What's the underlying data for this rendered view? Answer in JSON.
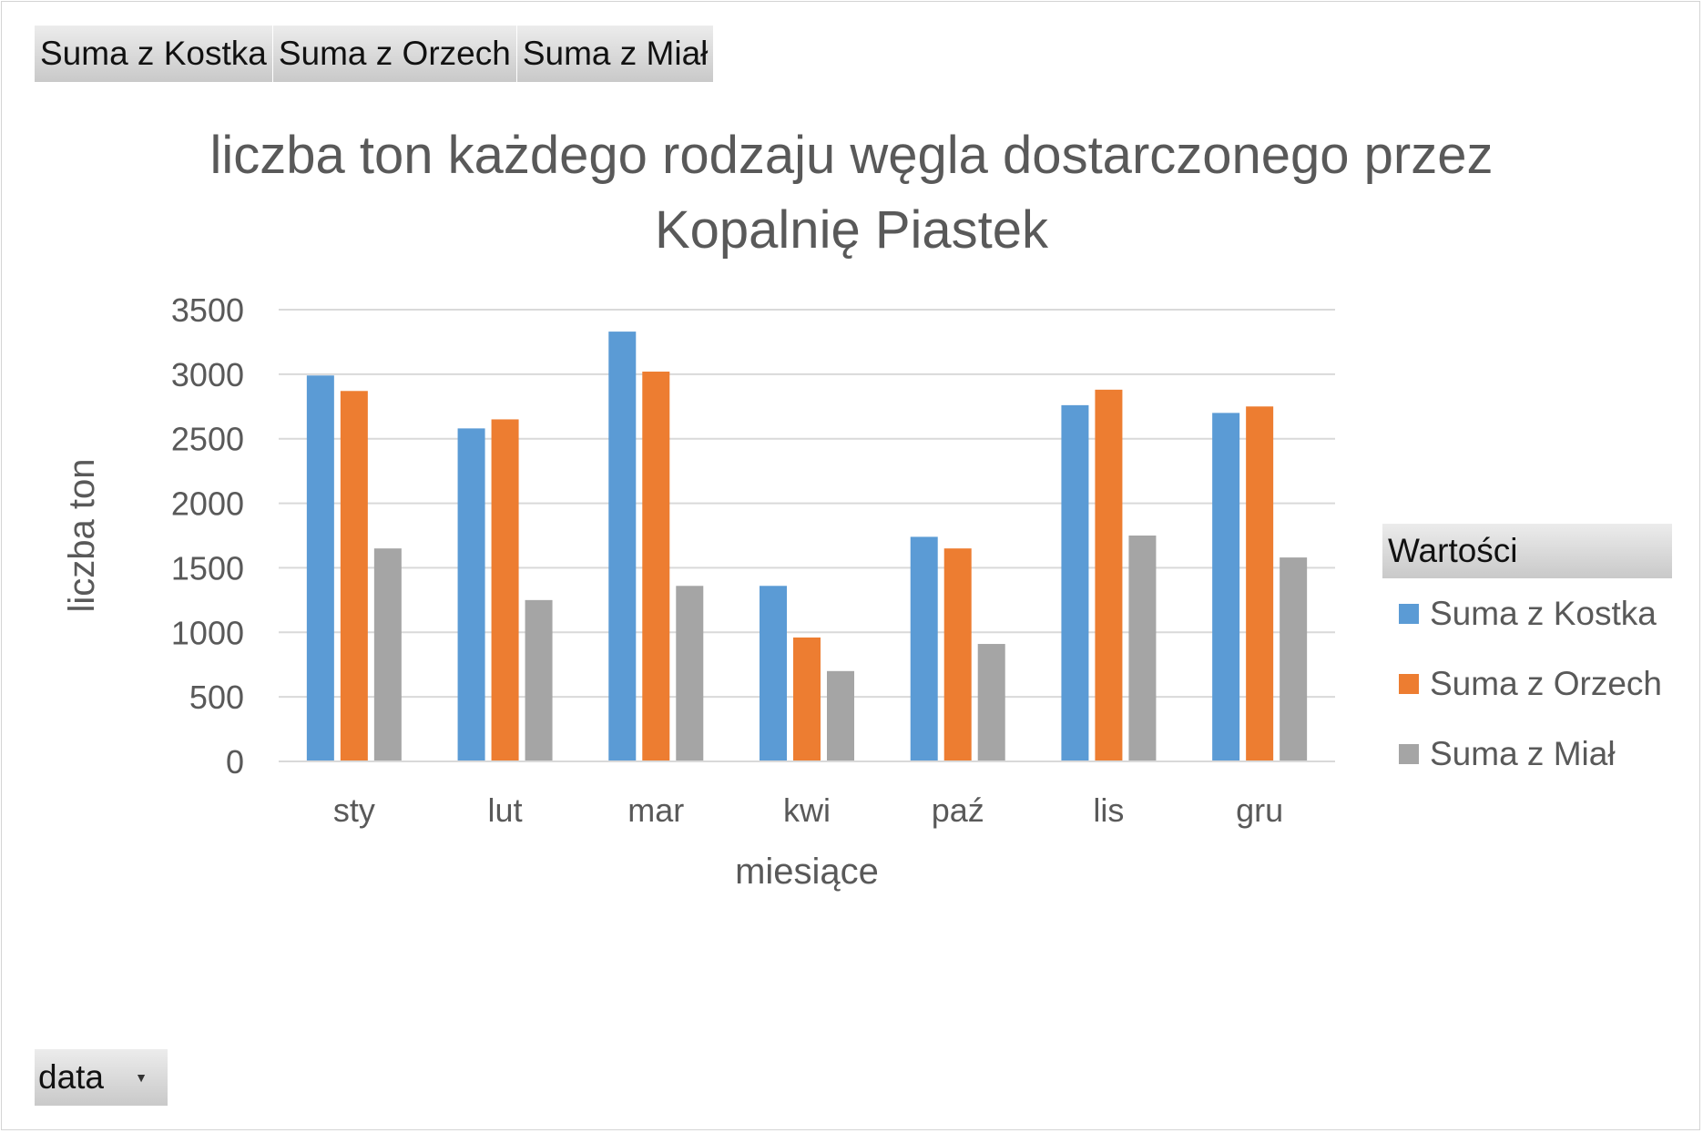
{
  "field_buttons": [
    "Suma z Kostka",
    "Suma z Orzech",
    "Suma z Miał"
  ],
  "filter": {
    "label": "data",
    "icon": "dropdown-arrow-icon"
  },
  "legend": {
    "header": "Wartości"
  },
  "colors": {
    "kostka": "#5b9bd5",
    "orzech": "#ed7d31",
    "mial": "#a5a5a5",
    "grid": "#d9d9d9",
    "text": "#595959"
  },
  "chart_data": {
    "type": "bar",
    "title_lines": [
      "liczba ton każdego rodzaju węgla dostarczonego przez",
      "Kopalnię Piastek"
    ],
    "xlabel": "miesiące",
    "ylabel": "liczba ton",
    "categories": [
      "sty",
      "lut",
      "mar",
      "kwi",
      "paź",
      "lis",
      "gru"
    ],
    "series": [
      {
        "name": "Suma z Kostka",
        "color": "#5b9bd5",
        "values": [
          2990,
          2580,
          3330,
          1360,
          1740,
          2760,
          2700
        ]
      },
      {
        "name": "Suma z Orzech",
        "color": "#ed7d31",
        "values": [
          2870,
          2650,
          3020,
          960,
          1650,
          2880,
          2750
        ]
      },
      {
        "name": "Suma z Miał",
        "color": "#a5a5a5",
        "values": [
          1650,
          1250,
          1360,
          700,
          910,
          1750,
          1580
        ]
      }
    ],
    "ylim": [
      0,
      3500
    ],
    "yticks": [
      0,
      500,
      1000,
      1500,
      2000,
      2500,
      3000,
      3500
    ],
    "grid": true,
    "legend_position": "right"
  }
}
